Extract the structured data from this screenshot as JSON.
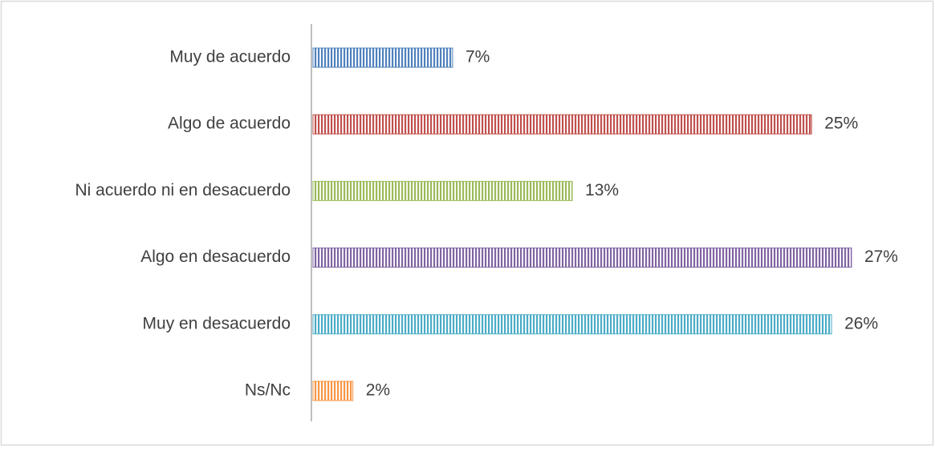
{
  "chart_data": {
    "type": "bar",
    "orientation": "horizontal",
    "categories": [
      "Muy de acuerdo",
      "Algo de acuerdo",
      "Ni acuerdo ni en desacuerdo",
      "Algo en desacuerdo",
      "Muy en desacuerdo",
      "Ns/Nc"
    ],
    "values": [
      7,
      25,
      13,
      27,
      26,
      2
    ],
    "value_labels": [
      "7%",
      "25%",
      "13%",
      "27%",
      "26%",
      "2%"
    ],
    "colors": [
      "#4f81bd",
      "#c0504d",
      "#9bbb59",
      "#8064a2",
      "#4bacc6",
      "#f79646"
    ]
  }
}
